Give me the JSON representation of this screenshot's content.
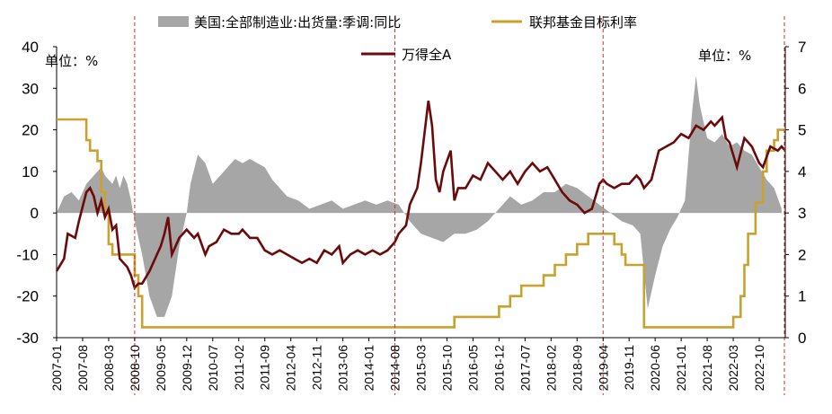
{
  "chart_data": {
    "type": "line",
    "legend": [
      {
        "key": "area",
        "label": "美国:全部制造业:出货量:季调:同比",
        "color": "#a6a6a6",
        "style": "area"
      },
      {
        "key": "fed",
        "label": "联邦基金目标利率",
        "color": "#c9a12e",
        "style": "line"
      },
      {
        "key": "wind",
        "label": "万得全A",
        "color": "#6b0a0a",
        "style": "line"
      }
    ],
    "unit_left": "单位：%",
    "unit_right": "单位：%",
    "y_left": {
      "min": -30,
      "max": 40,
      "ticks": [
        "40",
        "30",
        "20",
        "10",
        "0",
        "-10",
        "-20",
        "-30"
      ]
    },
    "y_right": {
      "min": 0,
      "max": 7,
      "ticks": [
        "7",
        "6",
        "5",
        "4",
        "3",
        "2",
        "1",
        "0"
      ]
    },
    "x_ticks": [
      "2007-01",
      "2007-08",
      "2008-03",
      "2008-10",
      "2009-05",
      "2009-12",
      "2010-07",
      "2011-02",
      "2011-09",
      "2012-04",
      "2012-11",
      "2013-06",
      "2014-01",
      "2014-08",
      "2015-03",
      "2015-10",
      "2016-05",
      "2016-12",
      "2017-07",
      "2018-02",
      "2018-09",
      "2019-04",
      "2019-11",
      "2020-06",
      "2021-01",
      "2021-08",
      "2022-03",
      "2022-10"
    ],
    "x_start": "2007-01",
    "x_end": "2023-05",
    "markers": [
      "2008-10",
      "2014-08",
      "2019-04",
      "2023-05"
    ],
    "series_area": {
      "name": "美国:全部制造业:出货量:季调:同比",
      "points": [
        [
          "2007-01",
          0
        ],
        [
          "2007-03",
          4
        ],
        [
          "2007-05",
          5
        ],
        [
          "2007-07",
          3
        ],
        [
          "2007-09",
          7
        ],
        [
          "2007-11",
          9
        ],
        [
          "2008-01",
          11
        ],
        [
          "2008-02",
          9
        ],
        [
          "2008-04",
          7
        ],
        [
          "2008-05",
          9
        ],
        [
          "2008-06",
          6
        ],
        [
          "2008-07",
          9
        ],
        [
          "2008-08",
          7
        ],
        [
          "2008-09",
          3
        ],
        [
          "2008-10",
          -2
        ],
        [
          "2008-12",
          -10
        ],
        [
          "2009-02",
          -20
        ],
        [
          "2009-04",
          -25
        ],
        [
          "2009-06",
          -25
        ],
        [
          "2009-08",
          -20
        ],
        [
          "2009-10",
          -8
        ],
        [
          "2009-12",
          0
        ],
        [
          "2010-01",
          7
        ],
        [
          "2010-03",
          14
        ],
        [
          "2010-05",
          12
        ],
        [
          "2010-07",
          7
        ],
        [
          "2010-09",
          9
        ],
        [
          "2010-11",
          11
        ],
        [
          "2011-01",
          13
        ],
        [
          "2011-03",
          12
        ],
        [
          "2011-05",
          13
        ],
        [
          "2011-07",
          12
        ],
        [
          "2011-09",
          11
        ],
        [
          "2011-11",
          8
        ],
        [
          "2012-01",
          6
        ],
        [
          "2012-03",
          4
        ],
        [
          "2012-06",
          3
        ],
        [
          "2012-09",
          1
        ],
        [
          "2012-12",
          2
        ],
        [
          "2013-03",
          3
        ],
        [
          "2013-06",
          1
        ],
        [
          "2013-09",
          2
        ],
        [
          "2013-12",
          3
        ],
        [
          "2014-03",
          2
        ],
        [
          "2014-06",
          3
        ],
        [
          "2014-09",
          2
        ],
        [
          "2014-12",
          -2
        ],
        [
          "2015-03",
          -5
        ],
        [
          "2015-06",
          -6
        ],
        [
          "2015-09",
          -7
        ],
        [
          "2015-12",
          -5
        ],
        [
          "2016-03",
          -5
        ],
        [
          "2016-06",
          -4
        ],
        [
          "2016-09",
          -2
        ],
        [
          "2016-12",
          1
        ],
        [
          "2017-03",
          4
        ],
        [
          "2017-06",
          2
        ],
        [
          "2017-09",
          3
        ],
        [
          "2017-12",
          5
        ],
        [
          "2018-03",
          5
        ],
        [
          "2018-06",
          7
        ],
        [
          "2018-09",
          6
        ],
        [
          "2018-12",
          4
        ],
        [
          "2019-03",
          2
        ],
        [
          "2019-06",
          0
        ],
        [
          "2019-09",
          -2
        ],
        [
          "2019-12",
          -3
        ],
        [
          "2020-02",
          -5
        ],
        [
          "2020-04",
          -23
        ],
        [
          "2020-06",
          -15
        ],
        [
          "2020-08",
          -8
        ],
        [
          "2020-10",
          -4
        ],
        [
          "2020-12",
          -1
        ],
        [
          "2021-02",
          3
        ],
        [
          "2021-04",
          25
        ],
        [
          "2021-05",
          33
        ],
        [
          "2021-06",
          26
        ],
        [
          "2021-08",
          18
        ],
        [
          "2021-10",
          17
        ],
        [
          "2021-12",
          19
        ],
        [
          "2022-02",
          16
        ],
        [
          "2022-04",
          17
        ],
        [
          "2022-06",
          15
        ],
        [
          "2022-08",
          14
        ],
        [
          "2022-10",
          11
        ],
        [
          "2022-12",
          8
        ],
        [
          "2023-02",
          6
        ],
        [
          "2023-04",
          1
        ]
      ]
    },
    "series_fed": {
      "name": "联邦基金目标利率",
      "points": [
        [
          "2007-01",
          5.25
        ],
        [
          "2007-08",
          5.25
        ],
        [
          "2007-09",
          4.75
        ],
        [
          "2007-10",
          4.5
        ],
        [
          "2007-12",
          4.25
        ],
        [
          "2008-01",
          3.5
        ],
        [
          "2008-02",
          3.0
        ],
        [
          "2008-03",
          2.25
        ],
        [
          "2008-04",
          2.0
        ],
        [
          "2008-10",
          1.5
        ],
        [
          "2008-11",
          1.0
        ],
        [
          "2008-12",
          0.25
        ],
        [
          "2015-12",
          0.5
        ],
        [
          "2016-12",
          0.75
        ],
        [
          "2017-03",
          1.0
        ],
        [
          "2017-06",
          1.25
        ],
        [
          "2017-12",
          1.5
        ],
        [
          "2018-03",
          1.75
        ],
        [
          "2018-06",
          2.0
        ],
        [
          "2018-09",
          2.25
        ],
        [
          "2018-12",
          2.5
        ],
        [
          "2019-07",
          2.25
        ],
        [
          "2019-09",
          2.0
        ],
        [
          "2019-10",
          1.75
        ],
        [
          "2020-03",
          0.25
        ],
        [
          "2022-03",
          0.5
        ],
        [
          "2022-05",
          1.0
        ],
        [
          "2022-06",
          1.75
        ],
        [
          "2022-07",
          2.5
        ],
        [
          "2022-09",
          3.25
        ],
        [
          "2022-11",
          4.0
        ],
        [
          "2022-12",
          4.5
        ],
        [
          "2023-02",
          4.75
        ],
        [
          "2023-03",
          5.0
        ],
        [
          "2023-05",
          5.0
        ]
      ]
    },
    "series_wind": {
      "name": "万得全A",
      "points": [
        [
          "2007-01",
          -14
        ],
        [
          "2007-03",
          -11
        ],
        [
          "2007-04",
          -5
        ],
        [
          "2007-06",
          -6
        ],
        [
          "2007-07",
          -2
        ],
        [
          "2007-09",
          5
        ],
        [
          "2007-10",
          6
        ],
        [
          "2007-11",
          4
        ],
        [
          "2007-12",
          0
        ],
        [
          "2008-01",
          3
        ],
        [
          "2008-02",
          -1
        ],
        [
          "2008-03",
          1
        ],
        [
          "2008-04",
          -4
        ],
        [
          "2008-05",
          -3
        ],
        [
          "2008-06",
          -11
        ],
        [
          "2008-08",
          -13
        ],
        [
          "2008-09",
          -15
        ],
        [
          "2008-10",
          -18
        ],
        [
          "2008-11",
          -17
        ],
        [
          "2008-12",
          -17
        ],
        [
          "2009-02",
          -14
        ],
        [
          "2009-04",
          -10
        ],
        [
          "2009-05",
          -8
        ],
        [
          "2009-06",
          -5
        ],
        [
          "2009-07",
          -1
        ],
        [
          "2009-08",
          -10
        ],
        [
          "2009-09",
          -8
        ],
        [
          "2009-10",
          -6
        ],
        [
          "2009-11",
          -5
        ],
        [
          "2009-12",
          -4
        ],
        [
          "2010-02",
          -6
        ],
        [
          "2010-03",
          -5
        ],
        [
          "2010-05",
          -10
        ],
        [
          "2010-06",
          -8
        ],
        [
          "2010-08",
          -7
        ],
        [
          "2010-10",
          -4
        ],
        [
          "2010-12",
          -5
        ],
        [
          "2011-02",
          -5
        ],
        [
          "2011-03",
          -4
        ],
        [
          "2011-05",
          -6
        ],
        [
          "2011-07",
          -6
        ],
        [
          "2011-09",
          -9
        ],
        [
          "2011-11",
          -10
        ],
        [
          "2012-01",
          -9
        ],
        [
          "2012-03",
          -10
        ],
        [
          "2012-05",
          -11
        ],
        [
          "2012-07",
          -12
        ],
        [
          "2012-09",
          -11
        ],
        [
          "2012-11",
          -12
        ],
        [
          "2013-01",
          -9
        ],
        [
          "2013-03",
          -10
        ],
        [
          "2013-05",
          -8
        ],
        [
          "2013-06",
          -12
        ],
        [
          "2013-08",
          -10
        ],
        [
          "2013-10",
          -9
        ],
        [
          "2013-12",
          -10
        ],
        [
          "2014-02",
          -9
        ],
        [
          "2014-04",
          -10
        ],
        [
          "2014-06",
          -9
        ],
        [
          "2014-08",
          -7
        ],
        [
          "2014-09",
          -5
        ],
        [
          "2014-11",
          -3
        ],
        [
          "2014-12",
          2
        ],
        [
          "2015-02",
          6
        ],
        [
          "2015-03",
          12
        ],
        [
          "2015-05",
          27
        ],
        [
          "2015-06",
          21
        ],
        [
          "2015-07",
          8
        ],
        [
          "2015-08",
          5
        ],
        [
          "2015-09",
          10
        ],
        [
          "2015-11",
          15
        ],
        [
          "2015-12",
          3
        ],
        [
          "2016-01",
          6
        ],
        [
          "2016-03",
          6
        ],
        [
          "2016-05",
          9
        ],
        [
          "2016-07",
          8
        ],
        [
          "2016-09",
          12
        ],
        [
          "2016-11",
          10
        ],
        [
          "2017-01",
          8
        ],
        [
          "2017-03",
          10
        ],
        [
          "2017-05",
          7
        ],
        [
          "2017-07",
          10
        ],
        [
          "2017-09",
          12
        ],
        [
          "2017-11",
          10
        ],
        [
          "2018-01",
          11
        ],
        [
          "2018-03",
          8
        ],
        [
          "2018-05",
          5
        ],
        [
          "2018-07",
          3
        ],
        [
          "2018-09",
          2
        ],
        [
          "2018-11",
          0
        ],
        [
          "2019-01",
          1
        ],
        [
          "2019-03",
          7
        ],
        [
          "2019-04",
          8
        ],
        [
          "2019-05",
          7
        ],
        [
          "2019-07",
          6
        ],
        [
          "2019-09",
          7
        ],
        [
          "2019-11",
          7
        ],
        [
          "2020-01",
          9
        ],
        [
          "2020-02",
          8
        ],
        [
          "2020-03",
          6
        ],
        [
          "2020-05",
          8
        ],
        [
          "2020-07",
          15
        ],
        [
          "2020-09",
          16
        ],
        [
          "2020-11",
          17
        ],
        [
          "2021-01",
          19
        ],
        [
          "2021-03",
          18
        ],
        [
          "2021-05",
          21
        ],
        [
          "2021-07",
          20
        ],
        [
          "2021-09",
          22
        ],
        [
          "2021-10",
          21
        ],
        [
          "2021-12",
          23
        ],
        [
          "2022-01",
          18
        ],
        [
          "2022-02",
          17
        ],
        [
          "2022-04",
          11
        ],
        [
          "2022-06",
          18
        ],
        [
          "2022-08",
          16
        ],
        [
          "2022-10",
          12
        ],
        [
          "2022-11",
          11
        ],
        [
          "2023-01",
          16
        ],
        [
          "2023-03",
          15
        ],
        [
          "2023-04",
          16
        ],
        [
          "2023-05",
          15
        ]
      ]
    }
  }
}
